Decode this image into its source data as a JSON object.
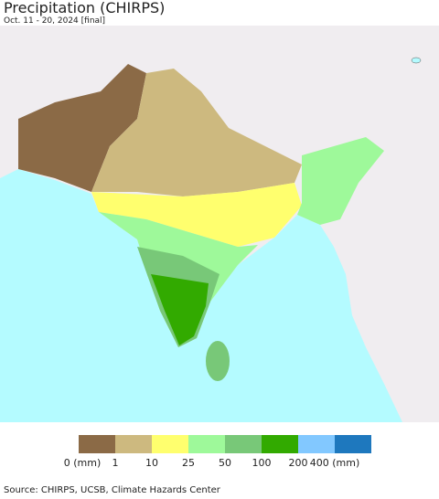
{
  "header": {
    "title": "Precipitation (CHIRPS)",
    "subtitle": "Oct. 11 - 20, 2024 [final]"
  },
  "legend": {
    "labels": [
      "0 (mm)",
      "1",
      "10",
      "25",
      "50",
      "100",
      "200",
      "400 (mm)"
    ],
    "colors": [
      "#8b6a46",
      "#cdb97f",
      "#ffff6e",
      "#9ef99a",
      "#78c878",
      "#32aa00",
      "#82c8ff",
      "#1e78be"
    ]
  },
  "footer": {
    "source": "Source: CHIRPS, UCSB, Climate Hazards Center"
  }
}
